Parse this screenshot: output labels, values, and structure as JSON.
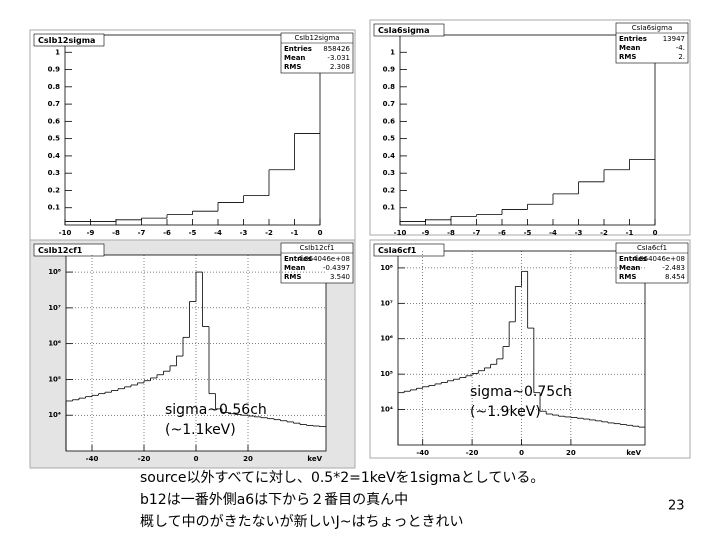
{
  "chart_data": [
    {
      "type": "histogram",
      "title": "CsIb12sigma",
      "stats": [
        {
          "label": "Entries",
          "value": "858426"
        },
        {
          "label": "Mean",
          "value": "-3.031"
        },
        {
          "label": "RMS",
          "value": "2.308"
        }
      ],
      "bins": [
        -10,
        -9,
        -8,
        -7,
        -6,
        -5,
        -4,
        -3,
        -2,
        -1,
        0
      ],
      "counts": [
        0.02,
        0.02,
        0.03,
        0.04,
        0.06,
        0.08,
        0.13,
        0.17,
        0.32,
        0.53
      ],
      "color": "#000000",
      "xlim": [
        -10,
        0
      ],
      "xticks": [
        -10,
        -9,
        -8,
        -7,
        -6,
        -5,
        -4,
        -3,
        -2,
        -1,
        0
      ],
      "ylim": [
        0,
        1.1
      ],
      "yticks": [
        0.1,
        0.2,
        0.3,
        0.4,
        0.5,
        0.6,
        0.7,
        0.8,
        0.9,
        1
      ],
      "grid": false,
      "log_y": false
    },
    {
      "type": "histogram",
      "title": "CsIa6sigma",
      "stats": [
        {
          "label": "Entries",
          "value": "13947"
        },
        {
          "label": "Mean",
          "value": "-4."
        },
        {
          "label": "RMS",
          "value": "2."
        }
      ],
      "bins": [
        -10,
        -9,
        -8,
        -7,
        -6,
        -5,
        -4,
        -3,
        -2,
        -1,
        0
      ],
      "counts": [
        0.02,
        0.03,
        0.05,
        0.06,
        0.09,
        0.12,
        0.18,
        0.25,
        0.32,
        0.38
      ],
      "color": "#000000",
      "xlim": [
        -10,
        0
      ],
      "xticks": [
        -10,
        -9,
        -8,
        -7,
        -6,
        -5,
        -4,
        -3,
        -2,
        -1,
        0
      ],
      "ylim": [
        0,
        1.1
      ],
      "yticks": [
        0.1,
        0.2,
        0.3,
        0.4,
        0.5,
        0.6,
        0.7,
        0.8,
        0.9,
        1
      ],
      "grid": false,
      "log_y": false
    },
    {
      "type": "histogram",
      "title": "CsIb12cf1",
      "stats": [
        {
          "label": "Entries",
          "value": "4.064046e+08"
        },
        {
          "label": "Mean",
          "value": "-0.4397"
        },
        {
          "label": "RMS",
          "value": "3.540"
        }
      ],
      "x_label": "keV",
      "annotations": [
        "sigma~0.56ch",
        "(~1.1keV)"
      ],
      "bins": [
        -50,
        -47.5,
        -45,
        -42.5,
        -40,
        -37.5,
        -35,
        -32.5,
        -30,
        -27.5,
        -25,
        -22.5,
        -20,
        -17.5,
        -15,
        -12.5,
        -10,
        -7.5,
        -5,
        -2.5,
        0,
        2.5,
        5,
        7.5,
        10,
        12.5,
        15,
        17.5,
        20,
        22.5,
        25,
        27.5,
        30,
        32.5,
        35,
        37.5,
        40,
        42.5,
        45,
        47.5,
        50
      ],
      "counts": [
        25000,
        27000,
        30000,
        33000,
        36000,
        40000,
        44000,
        49000,
        55000,
        62000,
        70000,
        80000,
        92000,
        110000,
        135000,
        170000,
        240000,
        450000,
        1500000,
        15000000,
        100000000,
        3000000,
        40000,
        15000,
        12000,
        11000,
        10500,
        10000,
        9500,
        9000,
        8500,
        8000,
        7500,
        7000,
        6500,
        6000,
        5500,
        5200,
        5000,
        4800
      ],
      "color": "#000000",
      "xlim": [
        -50,
        50
      ],
      "xticks": [
        -40,
        -20,
        0,
        20
      ],
      "ylim": [
        1000,
        300000000
      ],
      "yticks": [
        {
          "value": 10000,
          "label": "10⁴"
        },
        {
          "value": 100000,
          "label": "10⁵"
        },
        {
          "value": 1000000,
          "label": "10⁶"
        },
        {
          "value": 10000000,
          "label": "10⁷"
        },
        {
          "value": 100000000,
          "label": "10⁸"
        }
      ],
      "grid": true,
      "log_y": true
    },
    {
      "type": "histogram",
      "title": "CsIa6cf1",
      "stats": [
        {
          "label": "Entries",
          "value": "4.064046e+08"
        },
        {
          "label": "Mean",
          "value": "-2.483"
        },
        {
          "label": "RMS",
          "value": "8.454"
        }
      ],
      "x_label": "keV",
      "annotations": [
        "sigma~0.75ch",
        "(~1.9keV)"
      ],
      "bins": [
        -50,
        -47.5,
        -45,
        -42.5,
        -40,
        -37.5,
        -35,
        -32.5,
        -30,
        -27.5,
        -25,
        -22.5,
        -20,
        -17.5,
        -15,
        -12.5,
        -10,
        -7.5,
        -5,
        -2.5,
        0,
        2.5,
        5,
        7.5,
        10,
        12.5,
        15,
        17.5,
        20,
        22.5,
        25,
        27.5,
        30,
        32.5,
        35,
        37.5,
        40,
        42.5,
        45,
        47.5,
        50
      ],
      "counts": [
        30000,
        33000,
        36000,
        40000,
        44000,
        48000,
        53000,
        58000,
        65000,
        72000,
        80000,
        90000,
        105000,
        125000,
        150000,
        190000,
        270000,
        600000,
        3000000,
        30000000,
        80000000,
        2000000,
        30000,
        9000,
        7500,
        7000,
        6500,
        6200,
        6000,
        5700,
        5400,
        5100,
        4800,
        4500,
        4200,
        4000,
        3800,
        3600,
        3400,
        3200
      ],
      "color": "#000000",
      "xlim": [
        -50,
        50
      ],
      "xticks": [
        -40,
        -20,
        0,
        20
      ],
      "ylim": [
        1000,
        300000000
      ],
      "yticks": [
        {
          "value": 10000,
          "label": "10⁴"
        },
        {
          "value": 100000,
          "label": "10⁵"
        },
        {
          "value": 1000000,
          "label": "10⁶"
        },
        {
          "value": 10000000,
          "label": "10⁷"
        },
        {
          "value": 100000000,
          "label": "10⁸"
        }
      ],
      "grid": true,
      "log_y": true
    }
  ],
  "slide": {
    "notes": [
      "source以外すべてに対し、0.5*2=1keVを1sigmaとしている。",
      "b12は一番外側a6は下から２番目の真ん中",
      "概して中のがきたないが新しいJ~はちょっときれい"
    ],
    "page": "23"
  }
}
